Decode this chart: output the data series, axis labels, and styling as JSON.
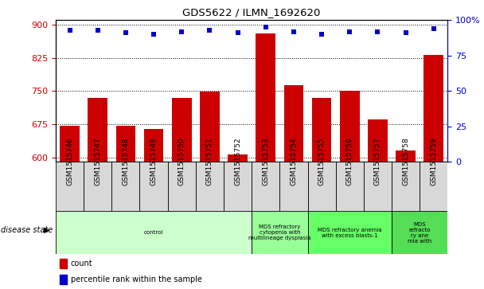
{
  "title": "GDS5622 / ILMN_1692620",
  "samples": [
    "GSM1515746",
    "GSM1515747",
    "GSM1515748",
    "GSM1515749",
    "GSM1515750",
    "GSM1515751",
    "GSM1515752",
    "GSM1515753",
    "GSM1515754",
    "GSM1515755",
    "GSM1515756",
    "GSM1515757",
    "GSM1515758",
    "GSM1515759"
  ],
  "counts": [
    672,
    735,
    671,
    665,
    735,
    748,
    607,
    880,
    763,
    735,
    750,
    685,
    615,
    832
  ],
  "percentiles": [
    93,
    93,
    91,
    90,
    92,
    93,
    91,
    95,
    92,
    90,
    92,
    92,
    91,
    94
  ],
  "ylim_left": [
    590,
    910
  ],
  "ylim_right": [
    0,
    100
  ],
  "yticks_left": [
    600,
    675,
    750,
    825,
    900
  ],
  "yticks_right": [
    0,
    25,
    50,
    75,
    100
  ],
  "bar_color": "#cc0000",
  "dot_color": "#0000cc",
  "bar_bottom": 590,
  "disease_states": [
    {
      "label": "control",
      "start": 0,
      "end": 7,
      "color": "#ccffcc"
    },
    {
      "label": "MDS refractory\ncytopenia with\nmultilineage dysplasia",
      "start": 7,
      "end": 9,
      "color": "#99ff99"
    },
    {
      "label": "MDS refractory anemia\nwith excess blasts-1",
      "start": 9,
      "end": 12,
      "color": "#66ff66"
    },
    {
      "label": "MDS\nrefracto\nry ane\nmia with",
      "start": 12,
      "end": 14,
      "color": "#55dd55"
    }
  ]
}
